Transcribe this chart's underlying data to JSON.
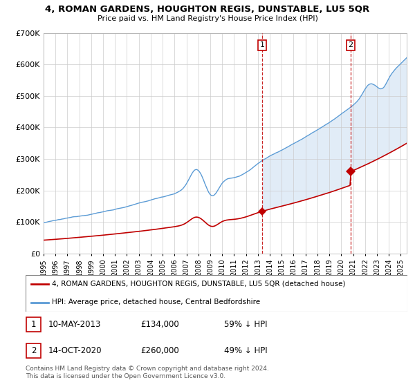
{
  "title": "4, ROMAN GARDENS, HOUGHTON REGIS, DUNSTABLE, LU5 5QR",
  "subtitle": "Price paid vs. HM Land Registry's House Price Index (HPI)",
  "legend_line1": "4, ROMAN GARDENS, HOUGHTON REGIS, DUNSTABLE, LU5 5QR (detached house)",
  "legend_line2": "HPI: Average price, detached house, Central Bedfordshire",
  "annotation1_date": "10-MAY-2013",
  "annotation1_price": "£134,000",
  "annotation1_pct": "59% ↓ HPI",
  "annotation1_year": 2013.37,
  "annotation1_value": 134000,
  "annotation2_date": "14-OCT-2020",
  "annotation2_price": "£260,000",
  "annotation2_pct": "49% ↓ HPI",
  "annotation2_year": 2020.79,
  "annotation2_value": 260000,
  "footer": "Contains HM Land Registry data © Crown copyright and database right 2024.\nThis data is licensed under the Open Government Licence v3.0.",
  "hpi_color": "#5b9bd5",
  "price_color": "#c00000",
  "ylim": [
    0,
    700000
  ],
  "xlim_start": 1995.0,
  "xlim_end": 2025.5
}
